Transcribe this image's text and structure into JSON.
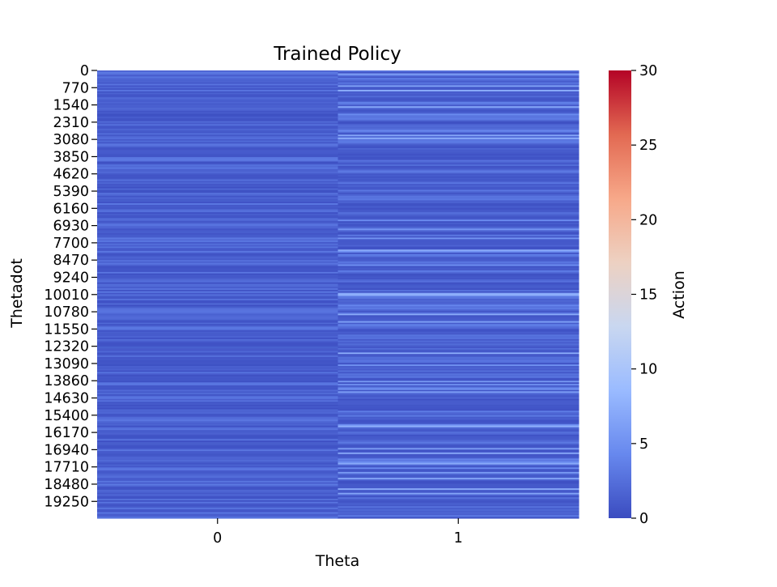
{
  "chart_data": {
    "type": "heatmap",
    "title": "Trained Policy",
    "xlabel": "Theta",
    "ylabel": "Thetadot",
    "x_categories": [
      "0",
      "1"
    ],
    "y_tick_labels": [
      "0",
      "770",
      "1540",
      "2310",
      "3080",
      "3850",
      "4620",
      "5390",
      "6160",
      "6930",
      "7700",
      "8470",
      "9240",
      "10010",
      "10780",
      "11550",
      "12320",
      "13090",
      "13860",
      "14630",
      "15400",
      "16170",
      "16940",
      "17710",
      "18480",
      "19250"
    ],
    "y_tick_step": 770,
    "y_row_count": 20000,
    "colorbar": {
      "label": "Action",
      "min": 0,
      "max": 30,
      "ticks": [
        "0",
        "5",
        "10",
        "15",
        "20",
        "25",
        "30"
      ],
      "colormap": "coolwarm",
      "colormap_stops": [
        "#3b4cc0",
        "#6788ee",
        "#9abbff",
        "#c9d7f0",
        "#edd1c2",
        "#f7a889",
        "#e26952",
        "#b40426"
      ]
    },
    "value_summary": {
      "column_0": {
        "typical_action": 1.5,
        "range": [
          0,
          4
        ]
      },
      "column_1": {
        "typical_action": 1.5,
        "range": [
          0,
          8
        ]
      }
    }
  }
}
